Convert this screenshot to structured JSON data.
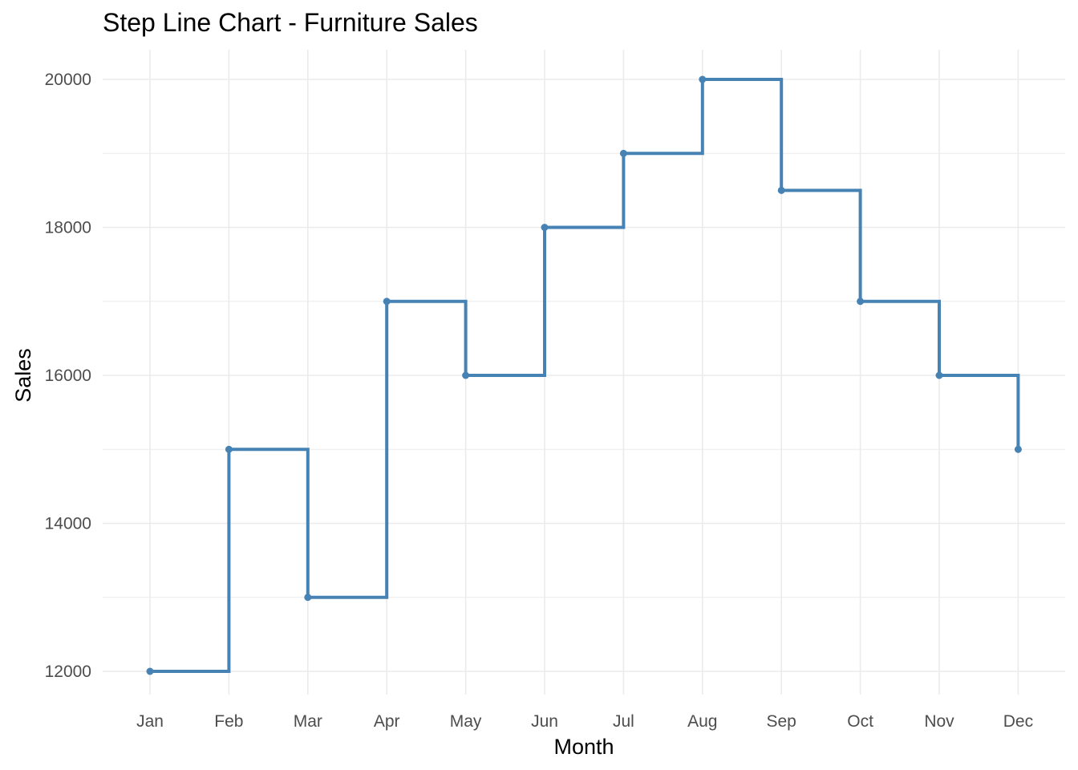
{
  "chart_data": {
    "type": "line",
    "line_style": "step",
    "title": "Step Line Chart - Furniture Sales",
    "xlabel": "Month",
    "ylabel": "Sales",
    "categories": [
      "Jan",
      "Feb",
      "Mar",
      "Apr",
      "May",
      "Jun",
      "Jul",
      "Aug",
      "Sep",
      "Oct",
      "Nov",
      "Dec"
    ],
    "values": [
      12000,
      15000,
      13000,
      17000,
      16000,
      18000,
      19000,
      20000,
      18500,
      17000,
      16000,
      15000
    ],
    "ylim": [
      11600,
      20400
    ],
    "y_ticks": [
      12000,
      14000,
      16000,
      18000,
      20000
    ],
    "y_minor_ticks": [
      13000,
      15000,
      17000,
      19000
    ],
    "grid": true,
    "legend": "none",
    "colors": {
      "line": "#4682B4",
      "grid": "#EBEBEB",
      "tick_text": "#4D4D4D"
    }
  }
}
